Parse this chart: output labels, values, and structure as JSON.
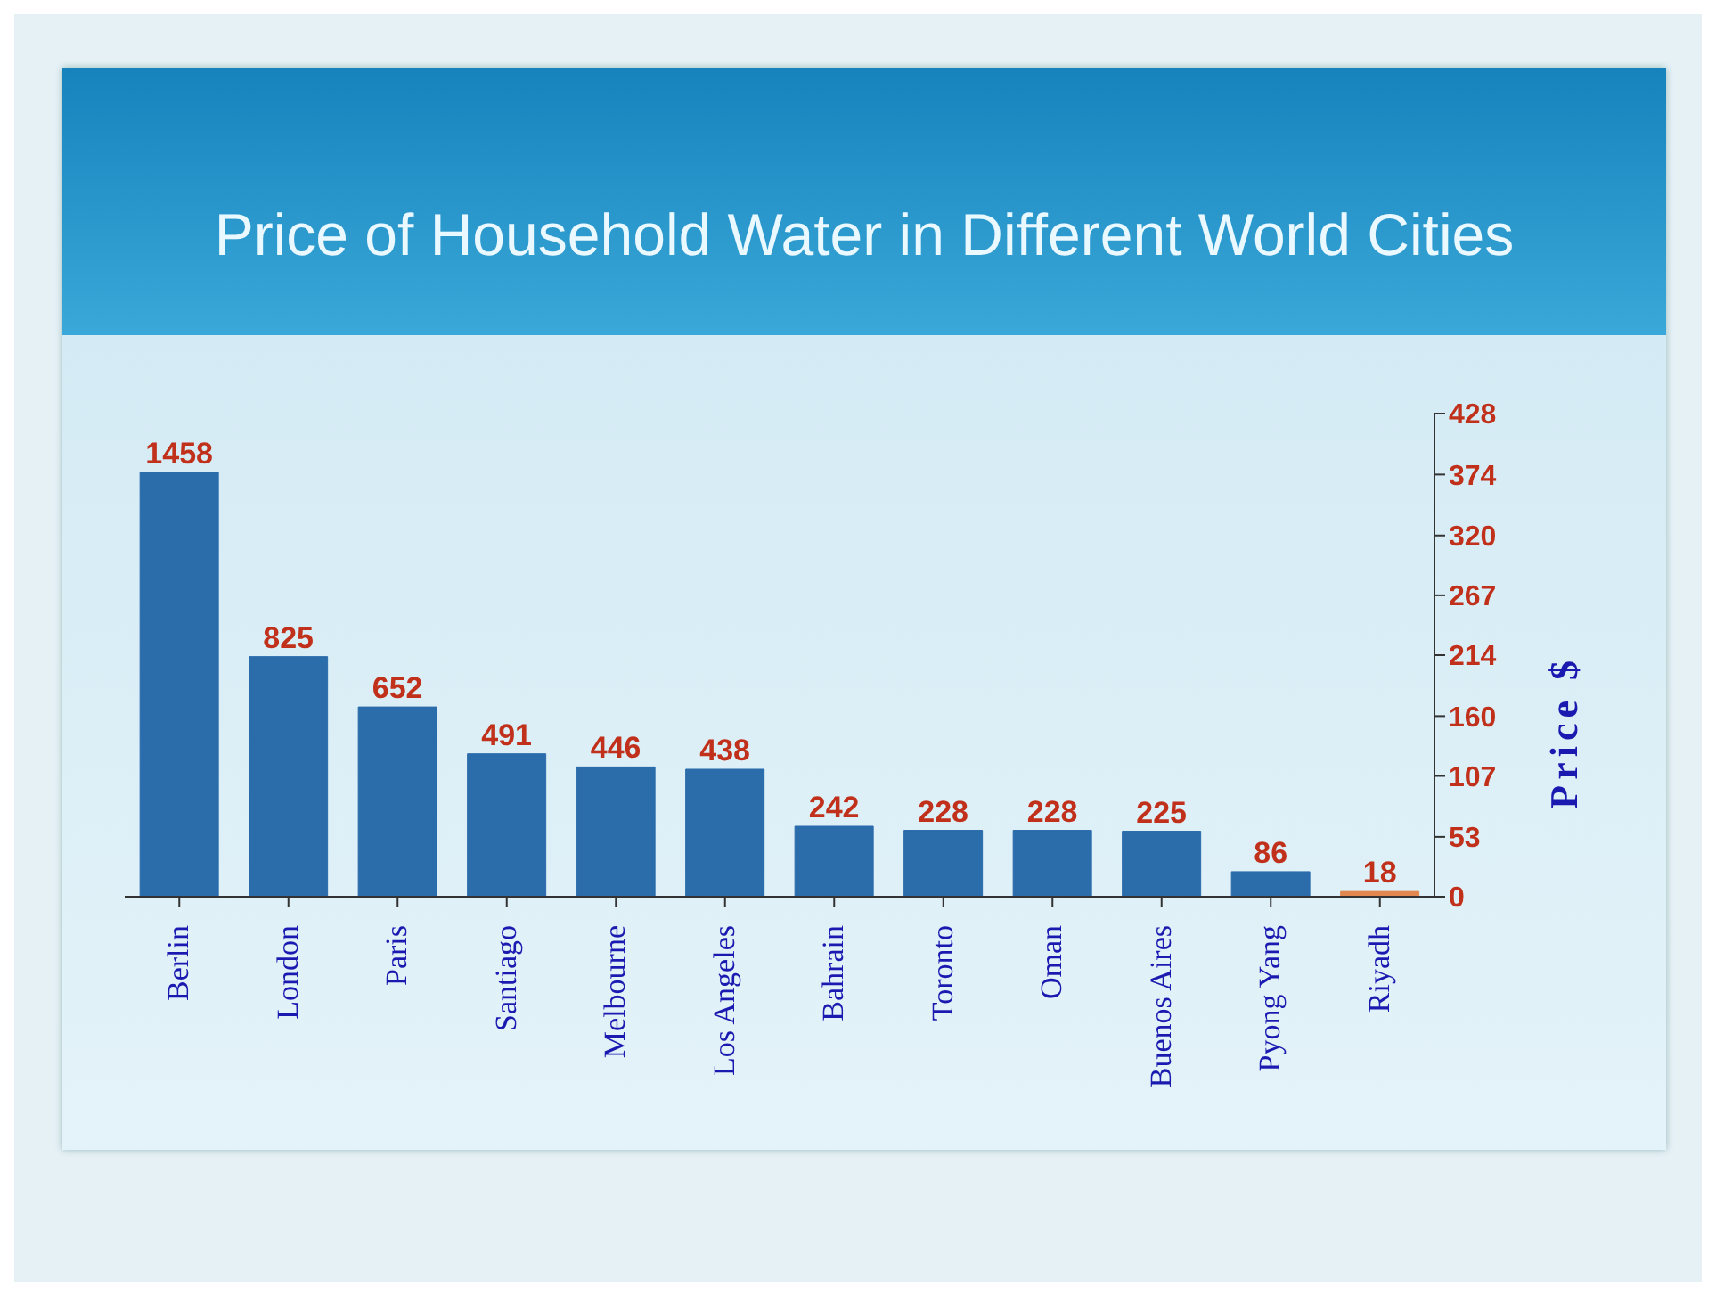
{
  "chart_data": {
    "type": "bar",
    "title": "Price of Household Water in Different World Cities",
    "y2label": "Price $",
    "categories": [
      "Berlin",
      "London",
      "Paris",
      "Santiago",
      "Melbourne",
      "Los Angeles",
      "Bahrain",
      "Toronto",
      "Oman",
      "Buenos Aires",
      "Pyong Yang",
      "Riyadh"
    ],
    "values": [
      1458,
      825,
      652,
      491,
      446,
      438,
      242,
      228,
      228,
      225,
      86,
      18
    ],
    "colors": [
      "#2b6cab",
      "#2b6cab",
      "#2b6cab",
      "#2b6cab",
      "#2b6cab",
      "#2b6cab",
      "#2b6cab",
      "#2b6cab",
      "#2b6cab",
      "#2b6cab",
      "#2b6cab",
      "#e08850"
    ],
    "data_labels": true,
    "ylim": [
      0,
      1660
    ],
    "y2lim": [
      0,
      428
    ],
    "y2ticks": [
      0,
      53,
      107,
      160,
      214,
      267,
      320,
      374,
      428
    ]
  }
}
